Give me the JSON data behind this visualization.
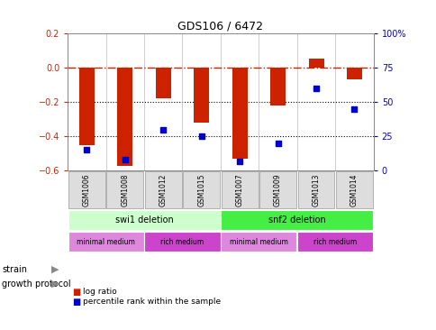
{
  "title": "GDS106 / 6472",
  "samples": [
    "GSM1006",
    "GSM1008",
    "GSM1012",
    "GSM1015",
    "GSM1007",
    "GSM1009",
    "GSM1013",
    "GSM1014"
  ],
  "log_ratio": [
    -0.45,
    -0.57,
    -0.18,
    -0.32,
    -0.53,
    -0.22,
    0.05,
    -0.07
  ],
  "percentile": [
    15,
    8,
    30,
    25,
    7,
    20,
    60,
    45
  ],
  "ylim_left": [
    -0.6,
    0.2
  ],
  "ylim_right": [
    0,
    100
  ],
  "yticks_left": [
    -0.6,
    -0.4,
    -0.2,
    0.0,
    0.2
  ],
  "yticks_right": [
    0,
    25,
    50,
    75,
    100
  ],
  "ytick_labels_right": [
    "0",
    "25",
    "50",
    "75",
    "100%"
  ],
  "bar_color": "#cc2200",
  "dot_color": "#0000cc",
  "hline_color": "#cc2200",
  "dotted_line_color": "#000000",
  "strain_labels": [
    "swi1 deletion",
    "snf2 deletion"
  ],
  "strain_ranges": [
    [
      0,
      4
    ],
    [
      4,
      8
    ]
  ],
  "strain_color_light": "#ccffcc",
  "strain_color_dark": "#44ee44",
  "protocol_labels": [
    "minimal medium",
    "rich medium",
    "minimal medium",
    "rich medium"
  ],
  "protocol_ranges": [
    [
      0,
      2
    ],
    [
      2,
      4
    ],
    [
      4,
      6
    ],
    [
      6,
      8
    ]
  ],
  "protocol_color_light": "#dd88dd",
  "protocol_color_dark": "#cc44cc",
  "legend_log_ratio_color": "#cc2200",
  "legend_percentile_color": "#0000cc",
  "bg_color": "#ffffff",
  "tick_label_color_left": "#cc2200",
  "tick_label_color_right": "#0000cc",
  "gsm_box_color": "#dddddd",
  "gsm_box_edge": "#999999"
}
